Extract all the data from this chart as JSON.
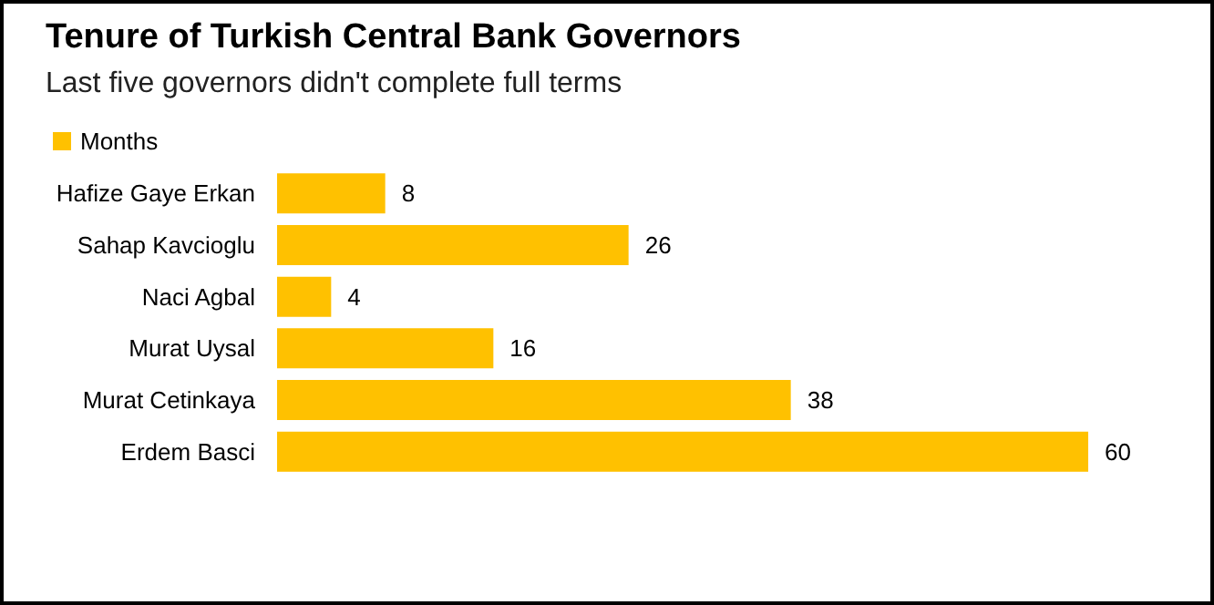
{
  "chart_data": {
    "type": "bar",
    "orientation": "horizontal",
    "title": "Tenure of Turkish Central Bank Governors",
    "subtitle": "Last five governors didn't complete full terms",
    "categories": [
      "Hafize Gaye Erkan",
      "Sahap Kavcioglu",
      "Naci Agbal",
      "Murat Uysal",
      "Murat Cetinkaya",
      "Erdem Basci"
    ],
    "series": [
      {
        "name": "Months",
        "color": "#ffc100",
        "values": [
          8,
          26,
          4,
          16,
          38,
          60
        ]
      }
    ],
    "data_labels": true,
    "legend": "top left"
  }
}
